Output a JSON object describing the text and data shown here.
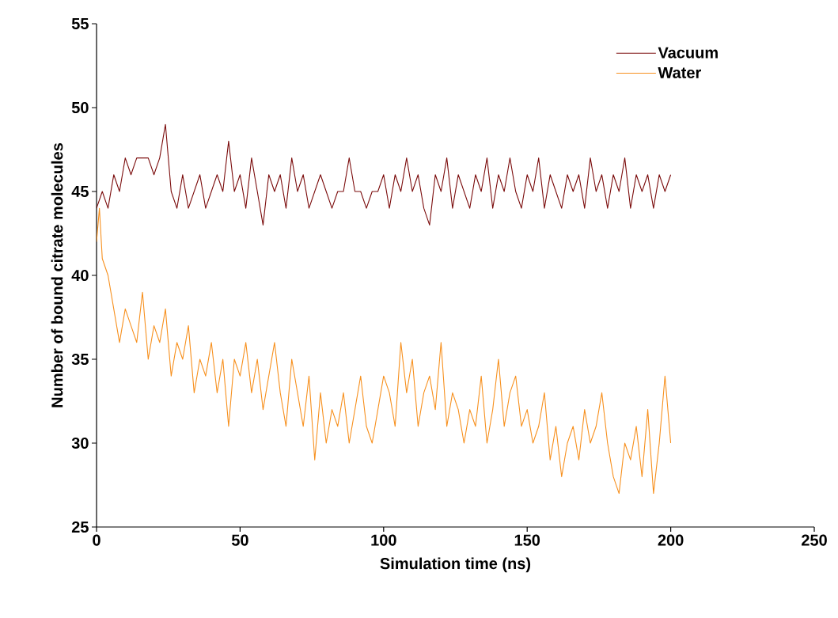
{
  "chart_data": {
    "type": "line",
    "xlabel": "Simulation time (ns)",
    "ylabel": "Number of bound citrate molecules",
    "xlim": [
      0,
      250
    ],
    "ylim": [
      25,
      55
    ],
    "xticks": [
      0,
      50,
      100,
      150,
      200,
      250
    ],
    "yticks": [
      25,
      30,
      35,
      40,
      45,
      50,
      55
    ],
    "legend": "top right",
    "series": [
      {
        "name": "Vacuum",
        "color": "#7b0c0c",
        "x": [
          0,
          2,
          4,
          6,
          8,
          10,
          12,
          14,
          16,
          18,
          20,
          22,
          24,
          26,
          28,
          30,
          32,
          34,
          36,
          38,
          40,
          42,
          44,
          46,
          48,
          50,
          52,
          54,
          56,
          58,
          60,
          62,
          64,
          66,
          68,
          70,
          72,
          74,
          76,
          78,
          80,
          82,
          84,
          86,
          88,
          90,
          92,
          94,
          96,
          98,
          100,
          102,
          104,
          106,
          108,
          110,
          112,
          114,
          116,
          118,
          120,
          122,
          124,
          126,
          128,
          130,
          132,
          134,
          136,
          138,
          140,
          142,
          144,
          146,
          148,
          150,
          152,
          154,
          156,
          158,
          160,
          162,
          164,
          166,
          168,
          170,
          172,
          174,
          176,
          178,
          180,
          182,
          184,
          186,
          188,
          190,
          192,
          194,
          196,
          198,
          200
        ],
        "values": [
          44,
          45,
          44,
          46,
          45,
          47,
          46,
          47,
          47,
          47,
          46,
          47,
          49,
          45,
          44,
          46,
          44,
          45,
          46,
          44,
          45,
          46,
          45,
          48,
          45,
          46,
          44,
          47,
          45,
          43,
          46,
          45,
          46,
          44,
          47,
          45,
          46,
          44,
          45,
          46,
          45,
          44,
          45,
          45,
          47,
          45,
          45,
          44,
          45,
          45,
          46,
          44,
          46,
          45,
          47,
          45,
          46,
          44,
          43,
          46,
          45,
          47,
          44,
          46,
          45,
          44,
          46,
          45,
          47,
          44,
          46,
          45,
          47,
          45,
          44,
          46,
          45,
          47,
          44,
          46,
          45,
          44,
          46,
          45,
          46,
          44,
          47,
          45,
          46,
          44,
          46,
          45,
          47,
          44,
          46,
          45,
          46,
          44,
          46,
          45,
          46
        ]
      },
      {
        "name": "Water",
        "color": "#f7901e",
        "x": [
          0,
          1,
          2,
          4,
          6,
          8,
          10,
          12,
          14,
          16,
          18,
          20,
          22,
          24,
          26,
          28,
          30,
          32,
          34,
          36,
          38,
          40,
          42,
          44,
          46,
          48,
          50,
          52,
          54,
          56,
          58,
          60,
          62,
          64,
          66,
          68,
          70,
          72,
          74,
          76,
          78,
          80,
          82,
          84,
          86,
          88,
          90,
          92,
          94,
          96,
          98,
          100,
          102,
          104,
          106,
          108,
          110,
          112,
          114,
          116,
          118,
          120,
          122,
          124,
          126,
          128,
          130,
          132,
          134,
          136,
          138,
          140,
          142,
          144,
          146,
          148,
          150,
          152,
          154,
          156,
          158,
          160,
          162,
          164,
          166,
          168,
          170,
          172,
          174,
          176,
          178,
          180,
          182,
          184,
          186,
          188,
          190,
          192,
          194,
          196,
          198,
          200
        ],
        "values": [
          42,
          44,
          41,
          40,
          38,
          36,
          38,
          37,
          36,
          39,
          35,
          37,
          36,
          38,
          34,
          36,
          35,
          37,
          33,
          35,
          34,
          36,
          33,
          35,
          31,
          35,
          34,
          36,
          33,
          35,
          32,
          34,
          36,
          33,
          31,
          35,
          33,
          31,
          34,
          29,
          33,
          30,
          32,
          31,
          33,
          30,
          32,
          34,
          31,
          30,
          32,
          34,
          33,
          31,
          36,
          33,
          35,
          31,
          33,
          34,
          32,
          36,
          31,
          33,
          32,
          30,
          32,
          31,
          34,
          30,
          32,
          35,
          31,
          33,
          34,
          31,
          32,
          30,
          31,
          33,
          29,
          31,
          28,
          30,
          31,
          29,
          32,
          30,
          31,
          33,
          30,
          28,
          27,
          30,
          29,
          31,
          28,
          32,
          27,
          30,
          34,
          30
        ]
      }
    ]
  }
}
